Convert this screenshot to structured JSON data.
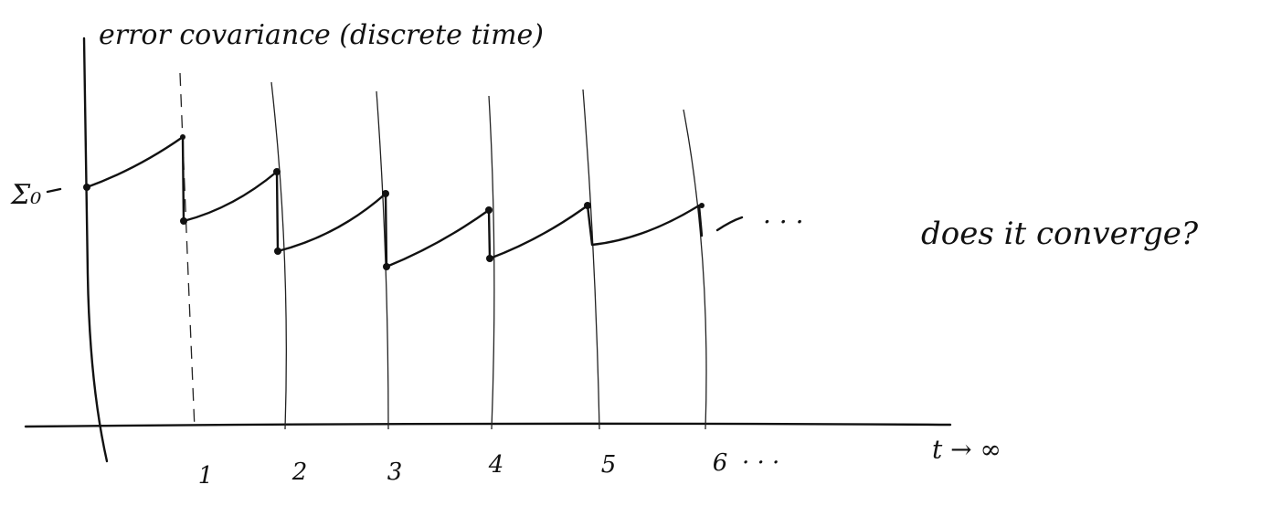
{
  "title": "error covariance (discrete time)",
  "y_axis": {
    "label": "Σ₀"
  },
  "x_axis": {
    "ticks": [
      "1",
      "2",
      "3",
      "4",
      "5",
      "6"
    ],
    "continuation": "· · ·",
    "label": "t → ∞"
  },
  "curve": {
    "continuation": "· · ·"
  },
  "question": "does it converge?"
}
